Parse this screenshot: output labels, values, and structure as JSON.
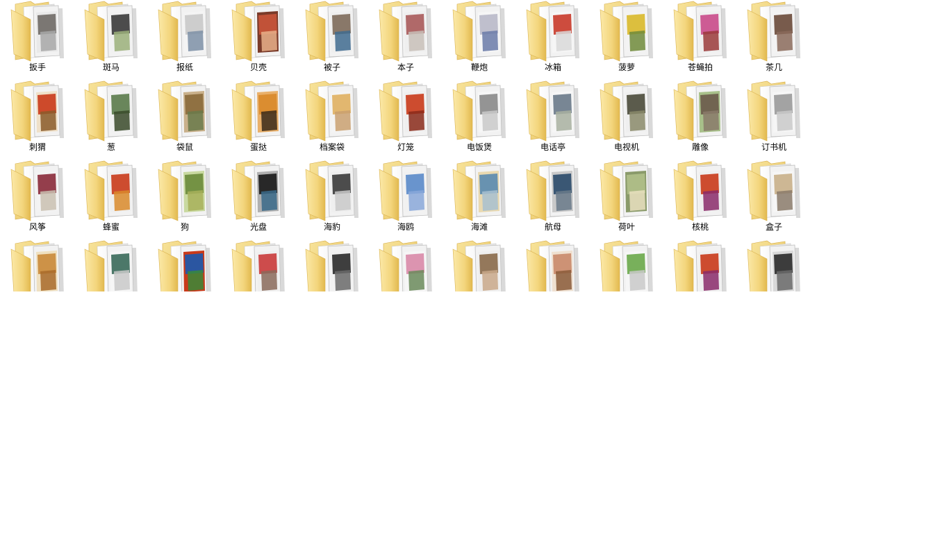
{
  "folders": {
    "rows": [
      {
        "items": [
          {
            "label": "扳手",
            "icon": "folder-icon",
            "colors": [
              "#6f6a66",
              "#a8a8a8",
              "#e9e9e9"
            ]
          },
          {
            "label": "斑马",
            "icon": "folder-icon",
            "colors": [
              "#3a3a3a",
              "#9bb07a",
              "#f1f1f1"
            ]
          },
          {
            "label": "报纸",
            "icon": "folder-icon",
            "colors": [
              "#c9c9c9",
              "#7d8fa6",
              "#f4f4f4"
            ]
          },
          {
            "label": "贝壳",
            "icon": "folder-icon",
            "colors": [
              "#c9553a",
              "#e8b08a",
              "#7a3b2a"
            ]
          },
          {
            "label": "被子",
            "icon": "folder-icon",
            "colors": [
              "#7d6a5a",
              "#3f6b8f",
              "#efefef"
            ]
          },
          {
            "label": "本子",
            "icon": "folder-icon",
            "colors": [
              "#a85a5a",
              "#c8c0b8",
              "#efefef"
            ]
          },
          {
            "label": "鞭炮",
            "icon": "folder-icon",
            "colors": [
              "#b9b9c9",
              "#6a7aa8",
              "#f6f6f6"
            ]
          },
          {
            "label": "冰箱",
            "icon": "folder-icon",
            "colors": [
              "#c93a2a",
              "#d9d9d9",
              "#f6f6f6"
            ]
          },
          {
            "label": "菠萝",
            "icon": "folder-icon",
            "colors": [
              "#d9b92a",
              "#6f8a3a",
              "#f3f3f3"
            ]
          },
          {
            "label": "苍蝇拍",
            "icon": "folder-icon",
            "colors": [
              "#c94a8a",
              "#9a3a3a",
              "#efefef"
            ]
          },
          {
            "label": "茶几",
            "icon": "folder-icon",
            "colors": [
              "#6a4a3a",
              "#8a6a5a",
              "#f3f3f3"
            ]
          }
        ]
      },
      {
        "items": [
          {
            "label": "刺猬",
            "icon": "folder-icon",
            "colors": [
              "#c93a1a",
              "#8a5a2a",
              "#efe0c8"
            ]
          },
          {
            "label": "葱",
            "icon": "folder-icon",
            "colors": [
              "#5a7a4a",
              "#3a4a2a",
              "#f1f1f1"
            ]
          },
          {
            "label": "袋鼠",
            "icon": "folder-icon",
            "colors": [
              "#8a6a3a",
              "#6a7a4a",
              "#c9b08a"
            ]
          },
          {
            "label": "蛋挞",
            "icon": "folder-icon",
            "colors": [
              "#d98a2a",
              "#3a2a1a",
              "#e9b06a"
            ]
          },
          {
            "label": "档案袋",
            "icon": "folder-icon",
            "colors": [
              "#e0b060",
              "#c9a070",
              "#f4f4f4"
            ]
          },
          {
            "label": "灯笼",
            "icon": "folder-icon",
            "colors": [
              "#c93a1a",
              "#8a2a1a",
              "#efefef"
            ]
          },
          {
            "label": "电饭煲",
            "icon": "folder-icon",
            "colors": [
              "#8a8a8a",
              "#c9c9c9",
              "#f6f6f6"
            ]
          },
          {
            "label": "电话亭",
            "icon": "folder-icon",
            "colors": [
              "#6a7a8a",
              "#a8b0a0",
              "#f6f6f6"
            ]
          },
          {
            "label": "电视机",
            "icon": "folder-icon",
            "colors": [
              "#4a4a3a",
              "#8a8a6a",
              "#efefef"
            ]
          },
          {
            "label": "雕像",
            "icon": "folder-icon",
            "colors": [
              "#6a5a4a",
              "#8a7a6a",
              "#a8c08a"
            ]
          },
          {
            "label": "订书机",
            "icon": "folder-icon",
            "colors": [
              "#9a9a9a",
              "#c9c9c9",
              "#f6f6f6"
            ]
          }
        ]
      },
      {
        "items": [
          {
            "label": "风筝",
            "icon": "folder-icon",
            "colors": [
              "#8a2a3a",
              "#c9c0b0",
              "#f3f3f3"
            ]
          },
          {
            "label": "蜂蜜",
            "icon": "folder-icon",
            "colors": [
              "#c93a1a",
              "#d98a2a",
              "#efefef"
            ]
          },
          {
            "label": "狗",
            "icon": "folder-icon",
            "colors": [
              "#6a8a3a",
              "#a8b05a",
              "#c9d9a0"
            ]
          },
          {
            "label": "光盘",
            "icon": "folder-icon",
            "colors": [
              "#1a1a1a",
              "#3a6a8a",
              "#b0b0b0"
            ]
          },
          {
            "label": "海豹",
            "icon": "folder-icon",
            "colors": [
              "#3a3a3a",
              "#c9c9c9",
              "#efefef"
            ]
          },
          {
            "label": "海鸥",
            "icon": "folder-icon",
            "colors": [
              "#5a8ac9",
              "#8aa8d9",
              "#f1f1f1"
            ]
          },
          {
            "label": "海滩",
            "icon": "folder-icon",
            "colors": [
              "#5a8ab0",
              "#a8c0d0",
              "#e9d9b0"
            ]
          },
          {
            "label": "航母",
            "icon": "folder-icon",
            "colors": [
              "#2a4a6a",
              "#6a7a8a",
              "#c9c9c9"
            ]
          },
          {
            "label": "荷叶",
            "icon": "folder-icon",
            "colors": [
              "#b0c08a",
              "#e9e0c0",
              "#8a9a6a"
            ]
          },
          {
            "label": "核桃",
            "icon": "folder-icon",
            "colors": [
              "#c93a1a",
              "#8a2a6a",
              "#efefef"
            ]
          },
          {
            "label": "盒子",
            "icon": "folder-icon",
            "colors": [
              "#c9b08a",
              "#8a7a6a",
              "#f6f6f6"
            ]
          }
        ]
      },
      {
        "items": [
          {
            "label": "",
            "icon": "folder-icon",
            "colors": [
              "#c98a3a",
              "#a86a2a",
              "#efe0c0"
            ]
          },
          {
            "label": "",
            "icon": "folder-icon",
            "colors": [
              "#3a6a5a",
              "#c9c9c9",
              "#f6f6f6"
            ]
          },
          {
            "label": "",
            "icon": "folder-icon",
            "colors": [
              "#1a5ab0",
              "#3a8a3a",
              "#c93a1a"
            ]
          },
          {
            "label": "",
            "icon": "folder-icon",
            "colors": [
              "#c93a3a",
              "#8a6a5a",
              "#efefef"
            ]
          },
          {
            "label": "",
            "icon": "folder-icon",
            "colors": [
              "#2a2a2a",
              "#6a6a6a",
              "#f1f1f1"
            ]
          },
          {
            "label": "",
            "icon": "folder-icon",
            "colors": [
              "#d98aa8",
              "#6a8a5a",
              "#f6f6f6"
            ]
          },
          {
            "label": "",
            "icon": "folder-icon",
            "colors": [
              "#8a6a4a",
              "#c9a88a",
              "#efefef"
            ]
          },
          {
            "label": "",
            "icon": "folder-icon",
            "colors": [
              "#c98a6a",
              "#8a5a3a",
              "#efe0d0"
            ]
          },
          {
            "label": "",
            "icon": "folder-icon",
            "colors": [
              "#6aa84a",
              "#c9c9c9",
              "#f6f6f6"
            ]
          },
          {
            "label": "",
            "icon": "folder-icon",
            "colors": [
              "#c93a1a",
              "#8a2a6a",
              "#efefef"
            ]
          },
          {
            "label": "",
            "icon": "folder-icon",
            "colors": [
              "#2a2a2a",
              "#6a6a6a",
              "#d9d9d9"
            ]
          }
        ]
      }
    ]
  }
}
